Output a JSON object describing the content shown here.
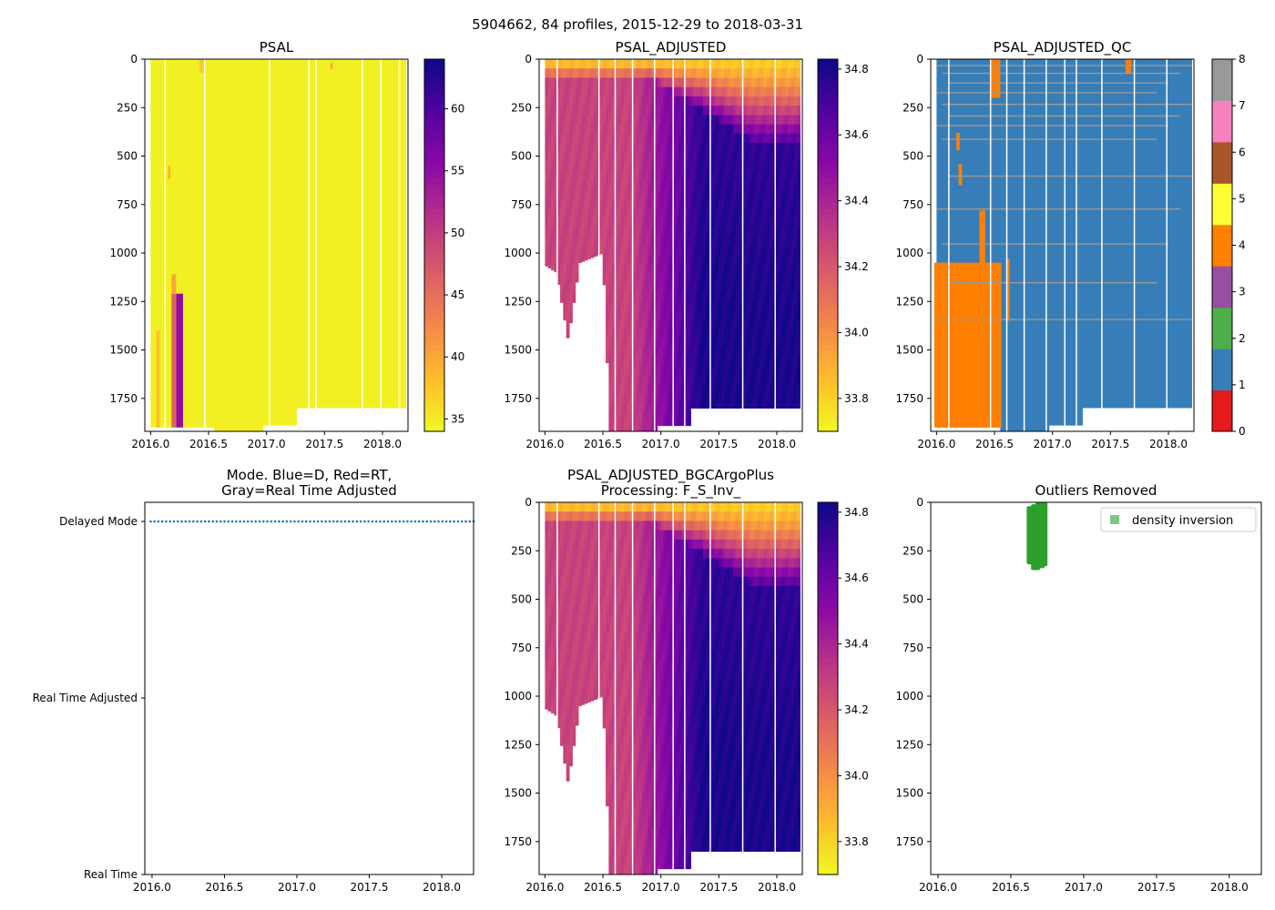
{
  "figure_title": "5904662, 84 profiles, 2015-12-29 to 2018-03-31",
  "chart_data": [
    {
      "id": "psal",
      "type": "heatmap",
      "title": "PSAL",
      "xlabel": "",
      "ylabel": "",
      "x_range": [
        2015.95,
        2018.22
      ],
      "y_range": [
        1920,
        0
      ],
      "x_ticks": [
        2016.0,
        2016.5,
        2017.0,
        2017.5,
        2018.0
      ],
      "x_tick_labels": [
        "2016.0",
        "2016.5",
        "2017.0",
        "2017.5",
        "2018.0"
      ],
      "y_ticks": [
        0,
        250,
        500,
        750,
        1000,
        1250,
        1500,
        1750
      ],
      "y_tick_labels": [
        "0",
        "250",
        "500",
        "750",
        "1000",
        "1250",
        "1500",
        "1750"
      ],
      "colormap": "plasma_r",
      "vmin": 34.0,
      "vmax": 64.0,
      "colorbar_ticks": [
        35,
        40,
        45,
        50,
        55,
        60
      ],
      "colorbar_tick_labels": [
        "35",
        "40",
        "45",
        "50",
        "55",
        "60"
      ],
      "background_value": 34.6,
      "max_depth_by_year": [
        [
          2015.95,
          1900
        ],
        [
          2016.55,
          1900
        ],
        [
          2016.56,
          1920
        ],
        [
          2016.96,
          1920
        ],
        [
          2016.97,
          1890
        ],
        [
          2017.25,
          1890
        ],
        [
          2017.26,
          1800
        ],
        [
          2018.22,
          1800
        ]
      ],
      "gaps": [
        2016.12,
        2016.46,
        2017.02,
        2017.36,
        2017.42,
        2017.82,
        2017.98,
        2018.14
      ],
      "patches": [
        {
          "t0": 2016.18,
          "t1": 2016.22,
          "z0": 1110,
          "z1": 1210,
          "value": 40
        },
        {
          "t0": 2016.22,
          "t1": 2016.28,
          "z0": 1210,
          "z1": 1900,
          "value": 55
        },
        {
          "t0": 2016.18,
          "t1": 2016.22,
          "z0": 1210,
          "z1": 1900,
          "value": 46
        },
        {
          "t0": 2016.05,
          "t1": 2016.08,
          "z0": 1400,
          "z1": 1900,
          "value": 38
        },
        {
          "t0": 2016.42,
          "t1": 2016.46,
          "z0": 0,
          "z1": 70,
          "value": 37
        },
        {
          "t0": 2016.15,
          "t1": 2016.17,
          "z0": 550,
          "z1": 620,
          "value": 39
        },
        {
          "t0": 2017.55,
          "t1": 2017.57,
          "z0": 20,
          "z1": 50,
          "value": 40
        }
      ]
    },
    {
      "id": "psal_adj",
      "type": "heatmap",
      "title": "PSAL_ADJUSTED",
      "x_range": [
        2015.95,
        2018.22
      ],
      "y_range": [
        1920,
        0
      ],
      "x_ticks": [
        2016.0,
        2016.5,
        2017.0,
        2017.5,
        2018.0
      ],
      "x_tick_labels": [
        "2016.0",
        "2016.5",
        "2017.0",
        "2017.5",
        "2018.0"
      ],
      "y_ticks": [
        0,
        250,
        500,
        750,
        1000,
        1250,
        1500,
        1750
      ],
      "y_tick_labels": [
        "0",
        "250",
        "500",
        "750",
        "1000",
        "1250",
        "1500",
        "1750"
      ],
      "colormap": "plasma_r",
      "vmin": 33.7,
      "vmax": 34.83,
      "colorbar_ticks": [
        33.8,
        34.0,
        34.2,
        34.4,
        34.6,
        34.8
      ],
      "colorbar_tick_labels": [
        "33.8",
        "34.0",
        "34.2",
        "34.4",
        "34.6",
        "34.8"
      ],
      "surface_value": 33.8,
      "deep_value_early": 34.3,
      "deep_value_late": 34.75,
      "max_depth_by_year": [
        [
          2015.97,
          1050
        ],
        [
          2016.1,
          1100
        ],
        [
          2016.2,
          1450
        ],
        [
          2016.3,
          1050
        ],
        [
          2016.5,
          1000
        ],
        [
          2016.56,
          1920
        ],
        [
          2016.96,
          1920
        ],
        [
          2016.97,
          1890
        ],
        [
          2017.25,
          1890
        ],
        [
          2017.26,
          1800
        ],
        [
          2018.22,
          1800
        ]
      ],
      "gaps": [
        2016.1,
        2016.46,
        2016.6,
        2016.75,
        2016.94,
        2017.1,
        2017.2,
        2017.42,
        2017.7,
        2017.98
      ]
    },
    {
      "id": "psal_adj_qc",
      "type": "heatmap",
      "title": "PSAL_ADJUSTED_QC",
      "x_range": [
        2015.95,
        2018.22
      ],
      "y_range": [
        1920,
        0
      ],
      "x_ticks": [
        2016.0,
        2016.5,
        2017.0,
        2017.5,
        2018.0
      ],
      "x_tick_labels": [
        "2016.0",
        "2016.5",
        "2017.0",
        "2017.5",
        "2018.0"
      ],
      "y_ticks": [
        0,
        250,
        500,
        750,
        1000,
        1250,
        1500,
        1750
      ],
      "y_tick_labels": [
        "0",
        "250",
        "500",
        "750",
        "1000",
        "1250",
        "1500",
        "1750"
      ],
      "categories": [
        0,
        1,
        2,
        3,
        4,
        5,
        6,
        7,
        8
      ],
      "category_colors": [
        "#e41a1c",
        "#377eb8",
        "#4daf4a",
        "#984ea3",
        "#ff7f00",
        "#ffff33",
        "#a65628",
        "#f781bf",
        "#999999"
      ],
      "colorbar_ticks": [
        0,
        1,
        2,
        3,
        4,
        5,
        6,
        7,
        8
      ],
      "colorbar_tick_labels": [
        "0",
        "1",
        "2",
        "3",
        "4",
        "5",
        "6",
        "7",
        "8"
      ],
      "background_flag": 1,
      "flag4_region": {
        "t0": 2015.98,
        "t1": 2016.56,
        "z0": 1050,
        "z1": 1900
      },
      "flag4_patches": [
        [
          2016.47,
          2016.55,
          0,
          200
        ],
        [
          2017.63,
          2017.68,
          0,
          70
        ],
        [
          2016.17,
          2016.2,
          380,
          470
        ],
        [
          2016.19,
          2016.22,
          540,
          650
        ],
        [
          2016.37,
          2016.42,
          780,
          1250
        ],
        [
          2016.6,
          2016.63,
          1030,
          1350
        ]
      ],
      "flag8_depths": [
        30,
        70,
        120,
        170,
        230,
        290,
        340,
        410,
        600,
        770,
        950,
        1150,
        1340
      ]
    },
    {
      "id": "mode",
      "type": "scatter",
      "title": "Mode. Blue=D, Red=RT,\nGray=Real Time Adjusted",
      "title_lines": [
        "Mode. Blue=D, Red=RT,",
        "Gray=Real Time Adjusted"
      ],
      "x_range": [
        2015.95,
        2018.22
      ],
      "x_ticks": [
        2016.0,
        2016.5,
        2017.0,
        2017.5,
        2018.0
      ],
      "x_tick_labels": [
        "2016.0",
        "2016.5",
        "2017.0",
        "2017.5",
        "2018.0"
      ],
      "y_ticks": [
        0,
        1,
        2
      ],
      "y_tick_labels": [
        "Delayed Mode",
        "Real Time Adjusted",
        "Real Time"
      ],
      "series": [
        {
          "name": "D",
          "color": "#1f77b4",
          "y": 0,
          "x_start": 2015.99,
          "x_end": 2018.22,
          "count": 84
        }
      ]
    },
    {
      "id": "psal_adj_bgc",
      "type": "heatmap",
      "title": "PSAL_ADJUSTED_BGCArgoPlus\nProcessing: F_S_Inv_",
      "title_lines": [
        "PSAL_ADJUSTED_BGCArgoPlus",
        "Processing: F_S_Inv_"
      ],
      "x_range": [
        2015.95,
        2018.22
      ],
      "y_range": [
        1920,
        0
      ],
      "x_ticks": [
        2016.0,
        2016.5,
        2017.0,
        2017.5,
        2018.0
      ],
      "x_tick_labels": [
        "2016.0",
        "2016.5",
        "2017.0",
        "2017.5",
        "2018.0"
      ],
      "y_ticks": [
        0,
        250,
        500,
        750,
        1000,
        1250,
        1500,
        1750
      ],
      "y_tick_labels": [
        "0",
        "250",
        "500",
        "750",
        "1000",
        "1250",
        "1500",
        "1750"
      ],
      "colormap": "plasma_r",
      "vmin": 33.7,
      "vmax": 34.83,
      "colorbar_ticks": [
        33.8,
        34.0,
        34.2,
        34.4,
        34.6,
        34.8
      ],
      "colorbar_tick_labels": [
        "33.8",
        "34.0",
        "34.2",
        "34.4",
        "34.6",
        "34.8"
      ],
      "same_as": "psal_adj"
    },
    {
      "id": "outliers",
      "type": "scatter",
      "title": "Outliers Removed",
      "x_range": [
        2015.95,
        2018.22
      ],
      "y_range": [
        1920,
        0
      ],
      "x_ticks": [
        2016.0,
        2016.5,
        2017.0,
        2017.5,
        2018.0
      ],
      "x_tick_labels": [
        "2016.0",
        "2016.5",
        "2017.0",
        "2017.5",
        "2018.0"
      ],
      "y_ticks": [
        0,
        250,
        500,
        750,
        1000,
        1250,
        1500,
        1750
      ],
      "y_tick_labels": [
        "0",
        "250",
        "500",
        "750",
        "1000",
        "1250",
        "1500",
        "1750"
      ],
      "legend": {
        "label": "density inversion",
        "color": "#2ca02c",
        "location": "upper right"
      },
      "series": [
        {
          "name": "density inversion",
          "color": "#2ca02c",
          "points": [
            [
              2016.64,
              20,
              320
            ],
            [
              2016.67,
              10,
              350
            ],
            [
              2016.7,
              0,
              340
            ],
            [
              2016.72,
              0,
              330
            ]
          ]
        }
      ]
    }
  ]
}
